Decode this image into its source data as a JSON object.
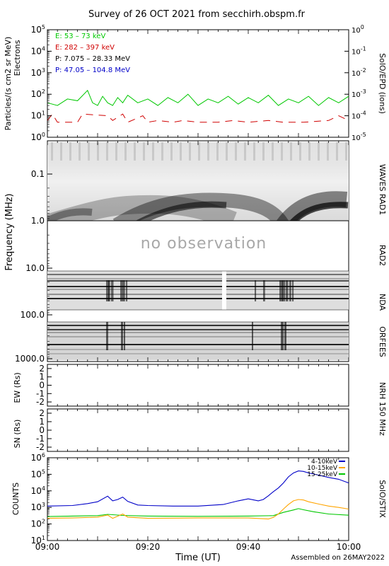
{
  "title": "Survey of 26 OCT 2021 from secchirh.obspm.fr",
  "footer": "Assembled on 26MAY2022",
  "no_observation": "no observation",
  "chart_data": [
    {
      "type": "line",
      "panel": "epd",
      "ylabel": "Particles/(s cm2 sr MeV)",
      "ylabel2": "Electrons",
      "right_label": "SolO/EPD  (ions)",
      "yscale": "log",
      "ylim": [
        1,
        100000
      ],
      "y_ticks": [
        "10^0",
        "10^1",
        "10^2",
        "10^3",
        "10^4",
        "10^5"
      ],
      "y2lim": [
        1e-05,
        1
      ],
      "y2_ticks": [
        "10^-5",
        "10^-4",
        "10^-3",
        "10^-2",
        "10^-1",
        "10^0"
      ],
      "xlim": [
        "09:00",
        "10:00"
      ],
      "series": [
        {
          "name": "E: 53 – 73 keV",
          "color": "#00c800",
          "x": [
            "09:00",
            "09:02",
            "09:04",
            "09:06",
            "09:08",
            "09:09",
            "09:10",
            "09:11",
            "09:12",
            "09:13",
            "09:14",
            "09:15",
            "09:16",
            "09:18",
            "09:20",
            "09:22",
            "09:24",
            "09:26",
            "09:28",
            "09:30",
            "09:32",
            "09:34",
            "09:36",
            "09:38",
            "09:40",
            "09:42",
            "09:44",
            "09:46",
            "09:48",
            "09:50",
            "09:52",
            "09:54",
            "09:56",
            "09:58",
            "10:00"
          ],
          "values": [
            40,
            30,
            60,
            50,
            150,
            40,
            30,
            80,
            40,
            30,
            70,
            40,
            90,
            40,
            60,
            30,
            70,
            40,
            100,
            30,
            60,
            40,
            80,
            35,
            70,
            40,
            90,
            30,
            60,
            40,
            80,
            30,
            70,
            40,
            80
          ]
        },
        {
          "name": "E: 282 – 397 keV",
          "color": "#d00000",
          "x": [
            "09:00",
            "09:01",
            "09:02",
            "09:03",
            "09:06",
            "09:07",
            "09:12",
            "09:13",
            "09:15",
            "09:16",
            "09:19",
            "09:20",
            "09:22",
            "09:25",
            "09:27",
            "09:30",
            "09:34",
            "09:37",
            "09:40",
            "09:44",
            "09:47",
            "09:51",
            "09:56",
            "09:58",
            "10:00"
          ],
          "values": [
            6,
            12,
            5,
            5,
            5,
            12,
            10,
            6,
            12,
            5,
            10,
            5,
            6,
            5,
            6,
            5,
            5,
            6,
            5,
            6,
            5,
            5,
            6,
            10,
            6
          ]
        },
        {
          "name": "P: 7.075 – 28.33 MeV",
          "color": "#000000",
          "x": [],
          "values": []
        },
        {
          "name": "P: 47.05 – 104.8 MeV",
          "color": "#0000c8",
          "x": [],
          "values": []
        }
      ]
    },
    {
      "type": "heatmap",
      "panel": "radio",
      "ylabel": "Frequency (MHz)",
      "yscale": "log",
      "ylim": [
        0.03,
        1500
      ],
      "y_ticks": [
        "0.1",
        "1.0",
        "10.0",
        "100.0",
        "1000.0"
      ],
      "instruments": [
        "WAVES RAD1",
        "RAD2",
        "NDA",
        "ORFEES"
      ],
      "xlim": [
        "09:00",
        "10:00"
      ]
    },
    {
      "type": "line",
      "panel": "nrh_ew",
      "ylabel": "EW (Rs)",
      "right_label": "NRH  150  MHz",
      "ylim": [
        -2.5,
        2.5
      ],
      "y_ticks": [
        "-2",
        "-1",
        "0",
        "1",
        "2"
      ],
      "series": []
    },
    {
      "type": "line",
      "panel": "nrh_sn",
      "ylabel": "SN (Rs)",
      "ylim": [
        -2.5,
        2.5
      ],
      "y_ticks": [
        "-2",
        "-1",
        "0",
        "1",
        "2"
      ],
      "series": []
    },
    {
      "type": "line",
      "panel": "stix",
      "ylabel": "COUNTS",
      "right_label": "SolO/STIX",
      "yscale": "log",
      "ylim": [
        10,
        1000000
      ],
      "y_ticks": [
        "10^1",
        "10^2",
        "10^3",
        "10^4",
        "10^5",
        "10^6"
      ],
      "xlabel": "Time (UT)",
      "x_ticks": [
        "09:00",
        "09:20",
        "09:40",
        "10:00"
      ],
      "xlim": [
        "09:00",
        "10:00"
      ],
      "series": [
        {
          "name": "4-10keV",
          "color": "#0000c8",
          "x": [
            "09:00",
            "09:05",
            "09:08",
            "09:10",
            "09:12",
            "09:13",
            "09:14",
            "09:15",
            "09:16",
            "09:18",
            "09:20",
            "09:25",
            "09:30",
            "09:35",
            "09:38",
            "09:40",
            "09:42",
            "09:43",
            "09:44",
            "09:45",
            "09:46",
            "09:47",
            "09:48",
            "09:49",
            "09:50",
            "09:51",
            "09:52",
            "09:54",
            "09:56",
            "09:58",
            "10:00"
          ],
          "values": [
            1200,
            1300,
            1700,
            2200,
            4800,
            2500,
            3000,
            4200,
            2300,
            1400,
            1300,
            1200,
            1200,
            1500,
            2500,
            3300,
            2500,
            3000,
            5000,
            9000,
            15000,
            30000,
            70000,
            120000,
            160000,
            150000,
            120000,
            90000,
            65000,
            50000,
            30000
          ]
        },
        {
          "name": "10-15keV",
          "color": "#ffa500",
          "x": [
            "09:00",
            "09:05",
            "09:10",
            "09:12",
            "09:13",
            "09:15",
            "09:16",
            "09:20",
            "09:30",
            "09:40",
            "09:44",
            "09:45",
            "09:46",
            "09:47",
            "09:48",
            "09:49",
            "09:50",
            "09:51",
            "09:52",
            "09:54",
            "09:56",
            "09:58",
            "10:00"
          ],
          "values": [
            220,
            230,
            260,
            350,
            220,
            400,
            260,
            220,
            230,
            230,
            200,
            250,
            400,
            800,
            1500,
            2500,
            3000,
            2800,
            2200,
            1600,
            1200,
            1000,
            800
          ]
        },
        {
          "name": "15-25keV",
          "color": "#00c800",
          "x": [
            "09:00",
            "09:05",
            "09:10",
            "09:12",
            "09:15",
            "09:20",
            "09:30",
            "09:40",
            "09:45",
            "09:47",
            "09:49",
            "09:50",
            "09:51",
            "09:53",
            "09:56",
            "10:00"
          ],
          "values": [
            280,
            300,
            320,
            380,
            330,
            300,
            290,
            300,
            320,
            500,
            700,
            850,
            720,
            550,
            400,
            340
          ]
        }
      ]
    }
  ]
}
